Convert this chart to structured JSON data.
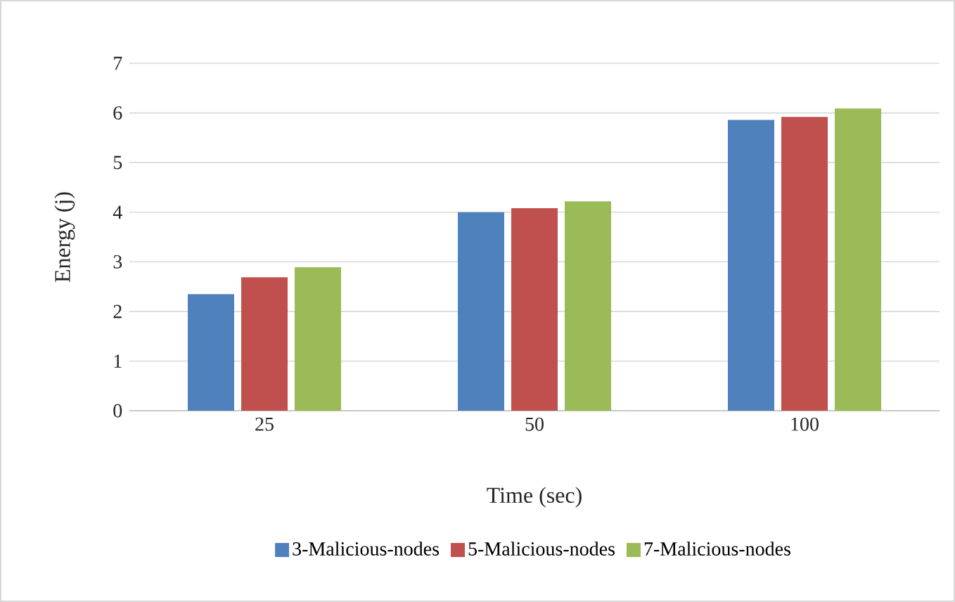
{
  "chart_data": {
    "type": "bar",
    "xlabel": "Time (sec)",
    "ylabel": "Energy (j)",
    "categories": [
      "25",
      "50",
      "100"
    ],
    "series": [
      {
        "name": "3-Malicious-nodes",
        "color": "#4f81bd",
        "values": [
          2.35,
          4.0,
          5.86
        ]
      },
      {
        "name": "5-Malicious-nodes",
        "color": "#c0504d",
        "values": [
          2.69,
          4.08,
          5.92
        ]
      },
      {
        "name": "7-Malicious-nodes",
        "color": "#9bbb59",
        "values": [
          2.89,
          4.22,
          6.09
        ]
      }
    ],
    "ylim": [
      0,
      7
    ],
    "yticks": [
      0,
      1,
      2,
      3,
      4,
      5,
      6,
      7
    ],
    "grid": "y",
    "legend": "bottom"
  }
}
